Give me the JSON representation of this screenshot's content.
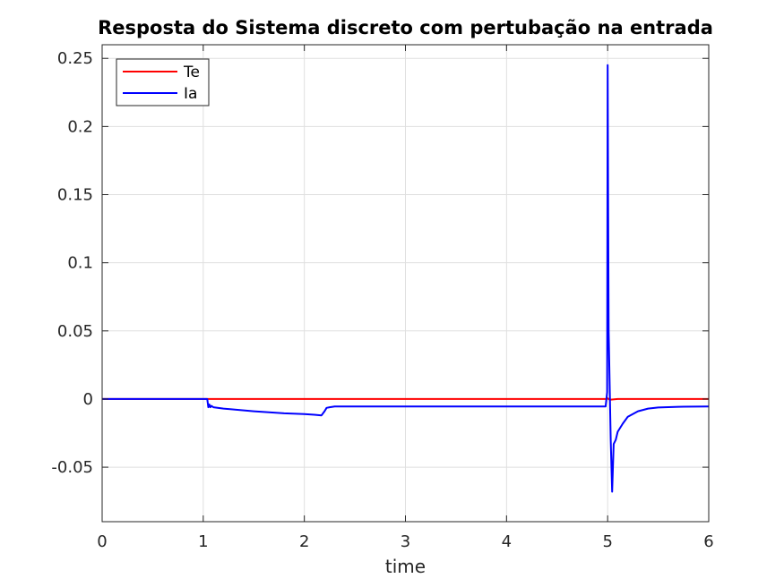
{
  "chart_data": {
    "type": "line",
    "title": "Resposta do Sistema discreto com pertubação na entrada",
    "xlabel": "time",
    "ylabel": "",
    "xlim": [
      0,
      6
    ],
    "ylim": [
      -0.09,
      0.26
    ],
    "xticks": [
      0,
      1,
      2,
      3,
      4,
      5,
      6
    ],
    "xtick_labels": [
      "0",
      "1",
      "2",
      "3",
      "4",
      "5",
      "6"
    ],
    "yticks": [
      -0.05,
      0,
      0.05,
      0.1,
      0.15,
      0.2,
      0.25
    ],
    "ytick_labels": [
      "-0.05",
      "0",
      "0.05",
      "0.1",
      "0.15",
      "0.2",
      "0.25"
    ],
    "grid": true,
    "legend_position": "top-left",
    "series": [
      {
        "name": "Te",
        "color": "#ff0000",
        "x": [
          0,
          1.0,
          1.05,
          2.0,
          3.0,
          4.0,
          4.99,
          5.0,
          5.02,
          5.1,
          5.5,
          6.0
        ],
        "y": [
          0,
          0,
          0,
          0,
          0,
          0,
          0,
          0.0005,
          -0.0005,
          0,
          0,
          0
        ]
      },
      {
        "name": "Ia",
        "color": "#0000ff",
        "x": [
          0,
          1.0,
          1.04,
          1.05,
          1.06,
          1.07,
          1.08,
          1.1,
          1.2,
          1.5,
          1.8,
          2.0,
          2.1,
          2.17,
          2.2,
          2.22,
          2.25,
          2.3,
          2.5,
          3.0,
          3.5,
          4.0,
          4.5,
          4.98,
          4.995,
          5.0,
          5.005,
          5.01,
          5.03,
          5.045,
          5.06,
          5.08,
          5.1,
          5.15,
          5.2,
          5.3,
          5.4,
          5.5,
          5.7,
          6.0
        ],
        "y": [
          0,
          0,
          0,
          -0.006,
          -0.004,
          -0.006,
          -0.005,
          -0.006,
          -0.007,
          -0.009,
          -0.0105,
          -0.011,
          -0.0115,
          -0.012,
          -0.009,
          -0.0065,
          -0.006,
          -0.0055,
          -0.0055,
          -0.0055,
          -0.0055,
          -0.0055,
          -0.0055,
          -0.0055,
          0.005,
          0.245,
          0.15,
          0.05,
          -0.03,
          -0.068,
          -0.033,
          -0.03,
          -0.024,
          -0.018,
          -0.013,
          -0.009,
          -0.007,
          -0.0062,
          -0.0057,
          -0.0055
        ]
      }
    ]
  }
}
